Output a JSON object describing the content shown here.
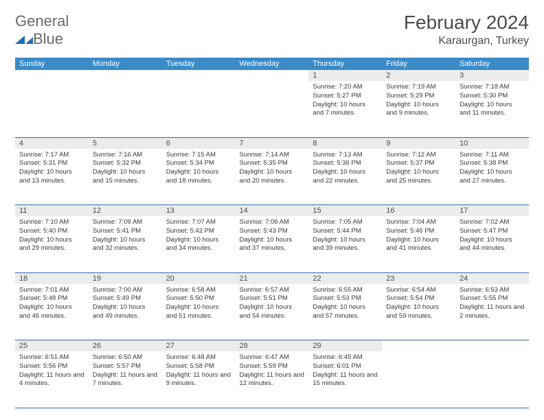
{
  "brand": {
    "line1": "General",
    "line2": "Blue"
  },
  "title": "February 2024",
  "location": "Karaurgan, Turkey",
  "colors": {
    "header_bg": "#3b8bc8",
    "header_text": "#ffffff",
    "daynum_bg": "#ececec",
    "row_divider": "#2f6aa5",
    "logo_blue": "#1e6bb8",
    "text_gray": "#4a4a4a"
  },
  "weekdays": [
    "Sunday",
    "Monday",
    "Tuesday",
    "Wednesday",
    "Thursday",
    "Friday",
    "Saturday"
  ],
  "weeks": [
    {
      "nums": [
        "",
        "",
        "",
        "",
        "1",
        "2",
        "3"
      ],
      "cells": [
        "",
        "",
        "",
        "",
        "Sunrise: 7:20 AM\nSunset: 5:27 PM\nDaylight: 10 hours and 7 minutes.",
        "Sunrise: 7:19 AM\nSunset: 5:29 PM\nDaylight: 10 hours and 9 minutes.",
        "Sunrise: 7:18 AM\nSunset: 5:30 PM\nDaylight: 10 hours and 11 minutes."
      ]
    },
    {
      "nums": [
        "4",
        "5",
        "6",
        "7",
        "8",
        "9",
        "10"
      ],
      "cells": [
        "Sunrise: 7:17 AM\nSunset: 5:31 PM\nDaylight: 10 hours and 13 minutes.",
        "Sunrise: 7:16 AM\nSunset: 5:32 PM\nDaylight: 10 hours and 15 minutes.",
        "Sunrise: 7:15 AM\nSunset: 5:34 PM\nDaylight: 10 hours and 18 minutes.",
        "Sunrise: 7:14 AM\nSunset: 5:35 PM\nDaylight: 10 hours and 20 minutes.",
        "Sunrise: 7:13 AM\nSunset: 5:36 PM\nDaylight: 10 hours and 22 minutes.",
        "Sunrise: 7:12 AM\nSunset: 5:37 PM\nDaylight: 10 hours and 25 minutes.",
        "Sunrise: 7:11 AM\nSunset: 5:38 PM\nDaylight: 10 hours and 27 minutes."
      ]
    },
    {
      "nums": [
        "11",
        "12",
        "13",
        "14",
        "15",
        "16",
        "17"
      ],
      "cells": [
        "Sunrise: 7:10 AM\nSunset: 5:40 PM\nDaylight: 10 hours and 29 minutes.",
        "Sunrise: 7:09 AM\nSunset: 5:41 PM\nDaylight: 10 hours and 32 minutes.",
        "Sunrise: 7:07 AM\nSunset: 5:42 PM\nDaylight: 10 hours and 34 minutes.",
        "Sunrise: 7:06 AM\nSunset: 5:43 PM\nDaylight: 10 hours and 37 minutes.",
        "Sunrise: 7:05 AM\nSunset: 5:44 PM\nDaylight: 10 hours and 39 minutes.",
        "Sunrise: 7:04 AM\nSunset: 5:46 PM\nDaylight: 10 hours and 41 minutes.",
        "Sunrise: 7:02 AM\nSunset: 5:47 PM\nDaylight: 10 hours and 44 minutes."
      ]
    },
    {
      "nums": [
        "18",
        "19",
        "20",
        "21",
        "22",
        "23",
        "24"
      ],
      "cells": [
        "Sunrise: 7:01 AM\nSunset: 5:48 PM\nDaylight: 10 hours and 46 minutes.",
        "Sunrise: 7:00 AM\nSunset: 5:49 PM\nDaylight: 10 hours and 49 minutes.",
        "Sunrise: 6:58 AM\nSunset: 5:50 PM\nDaylight: 10 hours and 51 minutes.",
        "Sunrise: 6:57 AM\nSunset: 5:51 PM\nDaylight: 10 hours and 54 minutes.",
        "Sunrise: 6:55 AM\nSunset: 5:53 PM\nDaylight: 10 hours and 57 minutes.",
        "Sunrise: 6:54 AM\nSunset: 5:54 PM\nDaylight: 10 hours and 59 minutes.",
        "Sunrise: 6:53 AM\nSunset: 5:55 PM\nDaylight: 11 hours and 2 minutes."
      ]
    },
    {
      "nums": [
        "25",
        "26",
        "27",
        "28",
        "29",
        "",
        ""
      ],
      "cells": [
        "Sunrise: 6:51 AM\nSunset: 5:56 PM\nDaylight: 11 hours and 4 minutes.",
        "Sunrise: 6:50 AM\nSunset: 5:57 PM\nDaylight: 11 hours and 7 minutes.",
        "Sunrise: 6:48 AM\nSunset: 5:58 PM\nDaylight: 11 hours and 9 minutes.",
        "Sunrise: 6:47 AM\nSunset: 5:59 PM\nDaylight: 11 hours and 12 minutes.",
        "Sunrise: 6:45 AM\nSunset: 6:01 PM\nDaylight: 11 hours and 15 minutes.",
        "",
        ""
      ]
    }
  ]
}
